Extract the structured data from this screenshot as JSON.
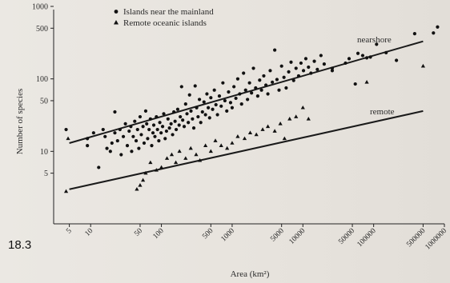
{
  "figure_label": "18.3",
  "chart_data": {
    "type": "scatter",
    "xscale": "log",
    "yscale": "log",
    "xlabel": "Area (km²)",
    "ylabel": "Number of species",
    "xlim": [
      3,
      1000000
    ],
    "ylim": [
      1,
      1000
    ],
    "xticks": [
      {
        "value": 5,
        "label": "5"
      },
      {
        "value": 10,
        "label": "10"
      },
      {
        "value": 50,
        "label": "50"
      },
      {
        "value": 100,
        "label": "100"
      },
      {
        "value": 500,
        "label": "500"
      },
      {
        "value": 1000,
        "label": "1000"
      },
      {
        "value": 5000,
        "label": "5000"
      },
      {
        "value": 10000,
        "label": "10000"
      },
      {
        "value": 50000,
        "label": "50000"
      },
      {
        "value": 100000,
        "label": "100000"
      },
      {
        "value": 500000,
        "label": "500000"
      },
      {
        "value": 1000000,
        "label": "1000000"
      }
    ],
    "yticks": [
      {
        "value": 5,
        "label": "5"
      },
      {
        "value": 10,
        "label": "10"
      },
      {
        "value": 50,
        "label": "50"
      },
      {
        "value": 100,
        "label": "100"
      },
      {
        "value": 500,
        "label": "500"
      },
      {
        "value": 1000,
        "label": "1000"
      }
    ],
    "legend": {
      "position": "top-left",
      "entries": [
        {
          "marker": "circle",
          "label": "Islands near the mainland"
        },
        {
          "marker": "triangle",
          "label": "Remote oceanic islands"
        }
      ]
    },
    "lines": [
      {
        "label": "nearshore",
        "x": [
          5,
          500000
        ],
        "y": [
          13,
          330
        ]
      },
      {
        "label": "remote",
        "x": [
          5,
          500000
        ],
        "y": [
          3,
          36
        ]
      }
    ],
    "series": [
      {
        "name": "Islands near the mainland",
        "marker": "circle",
        "points": [
          [
            4.5,
            20
          ],
          [
            9,
            12
          ],
          [
            9,
            15
          ],
          [
            11,
            18
          ],
          [
            13,
            6
          ],
          [
            15,
            20
          ],
          [
            16,
            16
          ],
          [
            17,
            11
          ],
          [
            19,
            10
          ],
          [
            20,
            13
          ],
          [
            22,
            35
          ],
          [
            22,
            18
          ],
          [
            24,
            14
          ],
          [
            26,
            20
          ],
          [
            27,
            9
          ],
          [
            29,
            16
          ],
          [
            31,
            24
          ],
          [
            33,
            12
          ],
          [
            35,
            19
          ],
          [
            37,
            22
          ],
          [
            38,
            10
          ],
          [
            40,
            16
          ],
          [
            42,
            26
          ],
          [
            44,
            14
          ],
          [
            46,
            20
          ],
          [
            48,
            11
          ],
          [
            50,
            30
          ],
          [
            52,
            17
          ],
          [
            55,
            22
          ],
          [
            57,
            13
          ],
          [
            60,
            36
          ],
          [
            62,
            24
          ],
          [
            64,
            15
          ],
          [
            67,
            20
          ],
          [
            70,
            28
          ],
          [
            73,
            12
          ],
          [
            76,
            18
          ],
          [
            78,
            23
          ],
          [
            81,
            16
          ],
          [
            85,
            30
          ],
          [
            88,
            20
          ],
          [
            92,
            14
          ],
          [
            95,
            25
          ],
          [
            99,
            18
          ],
          [
            104,
            22
          ],
          [
            108,
            33
          ],
          [
            113,
            15
          ],
          [
            118,
            19
          ],
          [
            124,
            28
          ],
          [
            130,
            21
          ],
          [
            137,
            24
          ],
          [
            144,
            17
          ],
          [
            150,
            35
          ],
          [
            156,
            26
          ],
          [
            162,
            20
          ],
          [
            170,
            38
          ],
          [
            178,
            23
          ],
          [
            185,
            30
          ],
          [
            193,
            78
          ],
          [
            200,
            27
          ],
          [
            210,
            22
          ],
          [
            220,
            45
          ],
          [
            230,
            33
          ],
          [
            240,
            25
          ],
          [
            250,
            60
          ],
          [
            262,
            36
          ],
          [
            275,
            28
          ],
          [
            287,
            21
          ],
          [
            300,
            80
          ],
          [
            315,
            40
          ],
          [
            330,
            30
          ],
          [
            345,
            52
          ],
          [
            360,
            25
          ],
          [
            380,
            35
          ],
          [
            400,
            48
          ],
          [
            420,
            32
          ],
          [
            440,
            62
          ],
          [
            460,
            40
          ],
          [
            480,
            29
          ],
          [
            500,
            55
          ],
          [
            530,
            38
          ],
          [
            560,
            70
          ],
          [
            590,
            44
          ],
          [
            620,
            32
          ],
          [
            660,
            58
          ],
          [
            700,
            42
          ],
          [
            740,
            88
          ],
          [
            790,
            50
          ],
          [
            840,
            36
          ],
          [
            890,
            66
          ],
          [
            950,
            47
          ],
          [
            1000,
            40
          ],
          [
            1060,
            78
          ],
          [
            1130,
            54
          ],
          [
            1200,
            100
          ],
          [
            1280,
            62
          ],
          [
            1360,
            45
          ],
          [
            1450,
            120
          ],
          [
            1550,
            70
          ],
          [
            1650,
            52
          ],
          [
            1760,
            88
          ],
          [
            1880,
            64
          ],
          [
            2000,
            140
          ],
          [
            2150,
            75
          ],
          [
            2300,
            58
          ],
          [
            2450,
            96
          ],
          [
            2600,
            70
          ],
          [
            2800,
            110
          ],
          [
            3000,
            82
          ],
          [
            3200,
            62
          ],
          [
            3450,
            130
          ],
          [
            3700,
            90
          ],
          [
            4000,
            250
          ],
          [
            4300,
            98
          ],
          [
            4600,
            70
          ],
          [
            5000,
            150
          ],
          [
            5400,
            105
          ],
          [
            5800,
            75
          ],
          [
            6300,
            125
          ],
          [
            6800,
            170
          ],
          [
            7400,
            95
          ],
          [
            8000,
            140
          ],
          [
            8700,
            110
          ],
          [
            9400,
            165
          ],
          [
            10200,
            130
          ],
          [
            11000,
            190
          ],
          [
            12000,
            145
          ],
          [
            13000,
            120
          ],
          [
            14500,
            175
          ],
          [
            16000,
            135
          ],
          [
            18000,
            210
          ],
          [
            20000,
            160
          ],
          [
            26000,
            130
          ],
          [
            26000,
            140
          ],
          [
            40000,
            165
          ],
          [
            45000,
            190
          ],
          [
            55000,
            85
          ],
          [
            60000,
            225
          ],
          [
            70000,
            210
          ],
          [
            80000,
            195
          ],
          [
            90000,
            200
          ],
          [
            110000,
            300
          ],
          [
            150000,
            230
          ],
          [
            210000,
            180
          ],
          [
            380000,
            420
          ],
          [
            700000,
            430
          ],
          [
            800000,
            520
          ]
        ]
      },
      {
        "name": "Remote oceanic islands",
        "marker": "triangle",
        "points": [
          [
            4.5,
            2.8
          ],
          [
            4.8,
            15
          ],
          [
            45,
            3
          ],
          [
            50,
            3.4
          ],
          [
            55,
            4
          ],
          [
            60,
            5
          ],
          [
            70,
            7
          ],
          [
            85,
            5.5
          ],
          [
            100,
            6
          ],
          [
            120,
            8
          ],
          [
            140,
            9
          ],
          [
            160,
            7
          ],
          [
            180,
            10
          ],
          [
            220,
            8
          ],
          [
            260,
            11
          ],
          [
            310,
            9
          ],
          [
            350,
            7.5
          ],
          [
            420,
            12
          ],
          [
            500,
            10
          ],
          [
            580,
            14
          ],
          [
            700,
            12
          ],
          [
            850,
            11
          ],
          [
            1000,
            13
          ],
          [
            1200,
            16
          ],
          [
            1500,
            15
          ],
          [
            1800,
            18
          ],
          [
            2200,
            17
          ],
          [
            2700,
            20
          ],
          [
            3200,
            22
          ],
          [
            4000,
            19
          ],
          [
            4800,
            24
          ],
          [
            5500,
            15
          ],
          [
            6500,
            28
          ],
          [
            8000,
            30
          ],
          [
            10000,
            40
          ],
          [
            12000,
            28
          ],
          [
            80000,
            90
          ],
          [
            500000,
            150
          ]
        ]
      }
    ]
  }
}
